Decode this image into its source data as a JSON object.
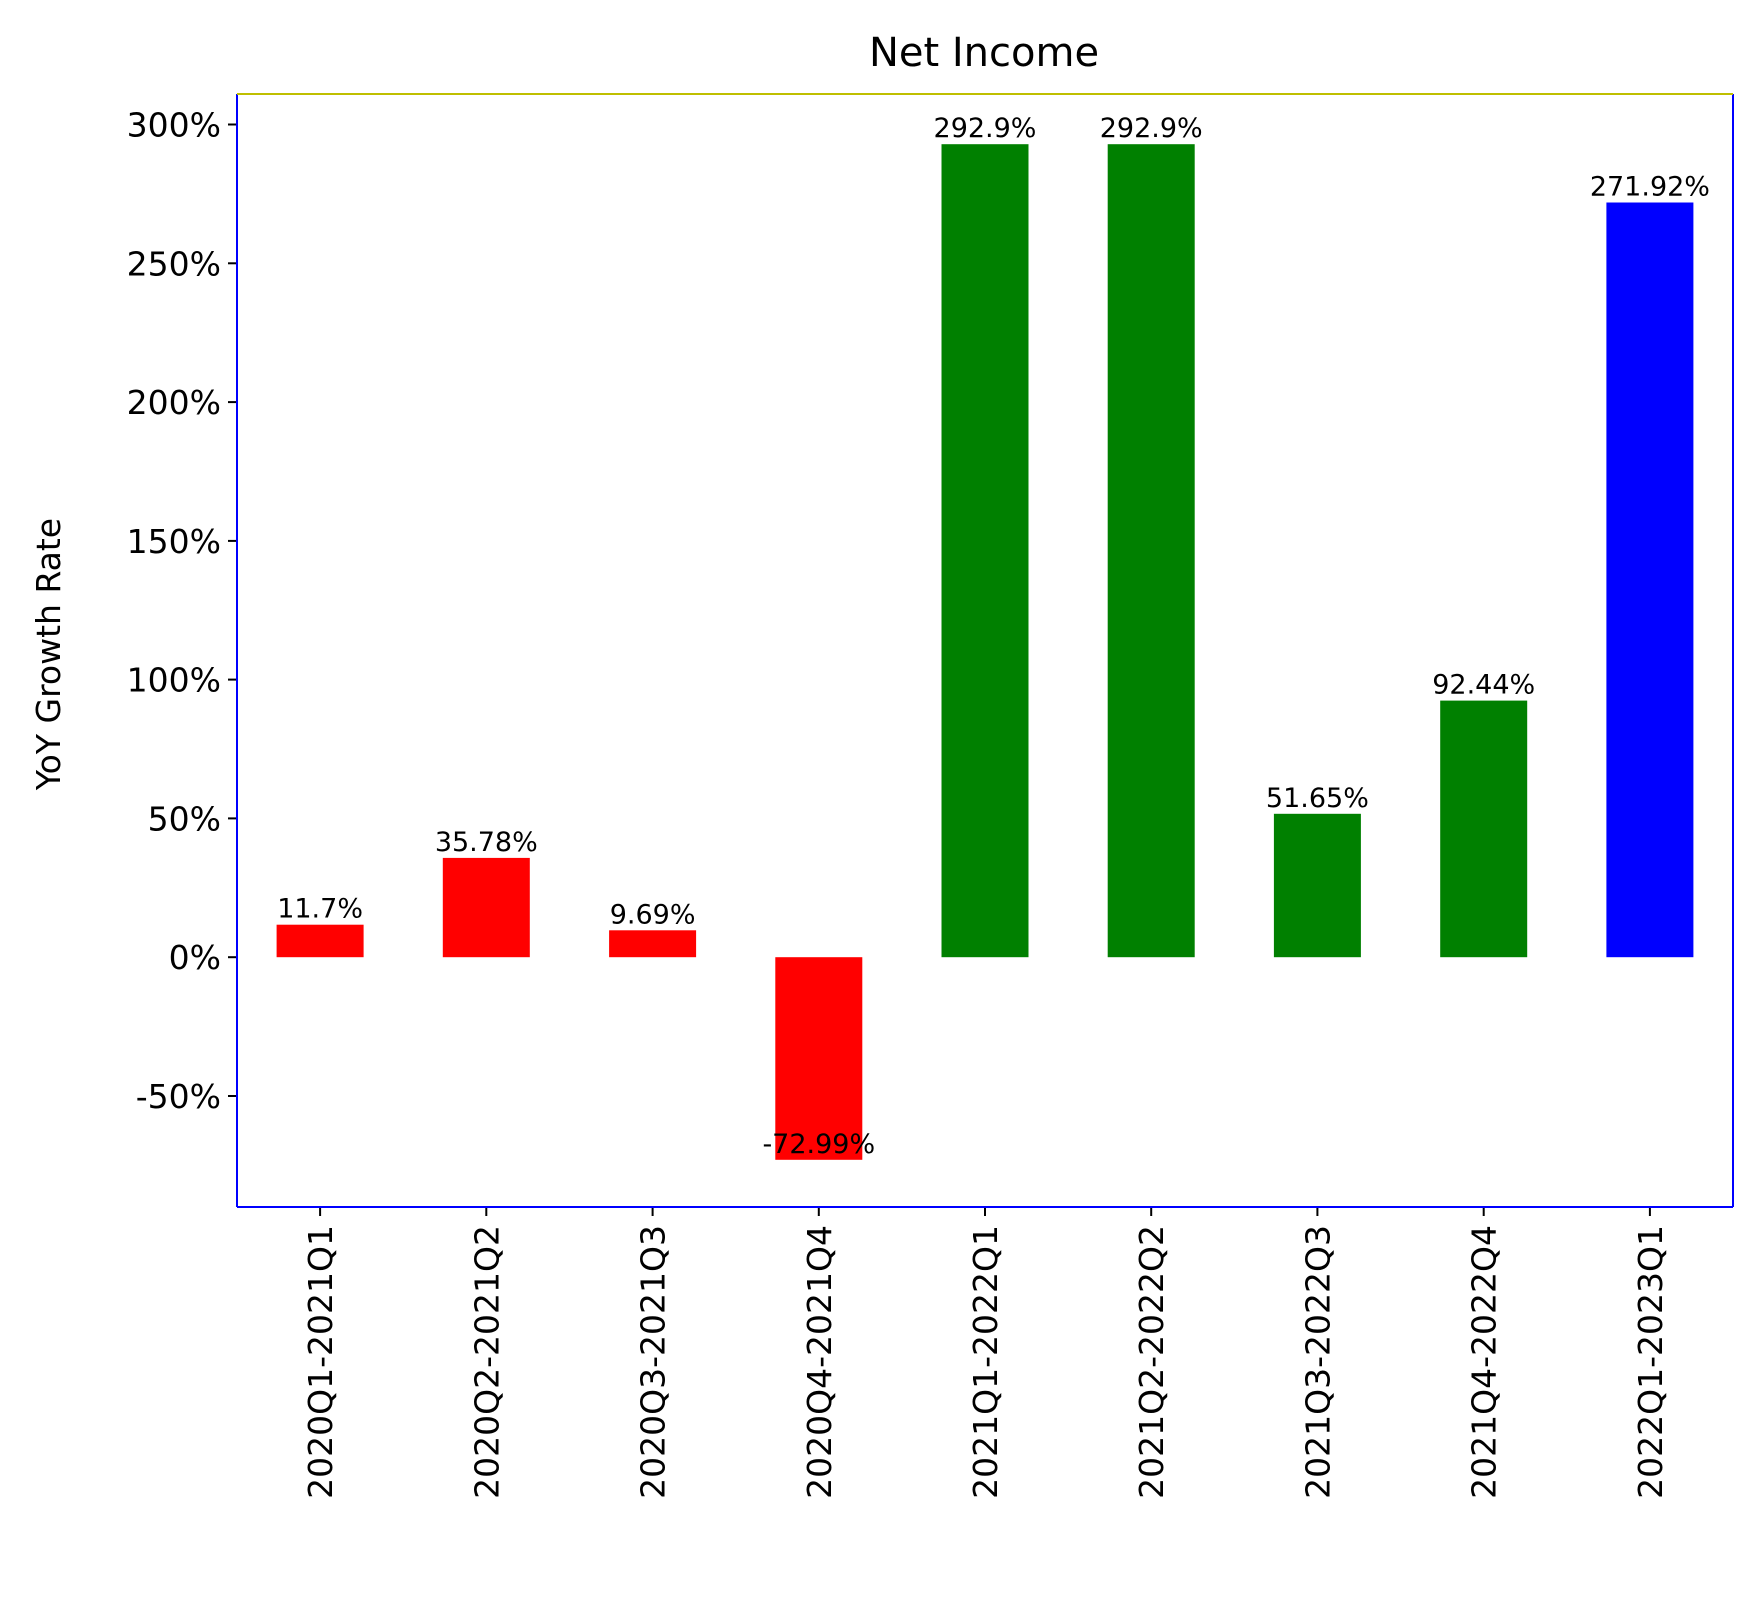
{
  "chart_data": {
    "type": "bar",
    "title": "Net Income",
    "xlabel": "",
    "ylabel": "YoY Growth Rate",
    "categories": [
      "2020Q1-2021Q1",
      "2020Q2-2021Q2",
      "2020Q3-2021Q3",
      "2020Q4-2021Q4",
      "2021Q1-2022Q1",
      "2021Q2-2022Q2",
      "2021Q3-2022Q3",
      "2021Q4-2022Q4",
      "2022Q1-2023Q1"
    ],
    "values": [
      11.7,
      35.78,
      9.69,
      -72.99,
      292.9,
      292.9,
      51.65,
      92.44,
      271.92
    ],
    "data_labels": [
      "11.7%",
      "35.78%",
      "9.69%",
      "-72.99%",
      "292.9%",
      "292.9%",
      "51.65%",
      "92.44%",
      "271.92%"
    ],
    "bar_colors": [
      "#ff0000",
      "#ff0000",
      "#ff0000",
      "#ff0000",
      "#008000",
      "#008000",
      "#008000",
      "#008000",
      "#0000ff"
    ],
    "ylim": [
      -90,
      311
    ],
    "yticks": [
      -50,
      0,
      50,
      100,
      150,
      200,
      250,
      300
    ],
    "ytick_labels": [
      "-50%",
      "0%",
      "50%",
      "100%",
      "150%",
      "200%",
      "250%",
      "300%"
    ],
    "grid": false,
    "legend": "none",
    "spine_colors": {
      "left": "#0000ff",
      "right": "#0000ff",
      "bottom": "#0000ff",
      "top": "#bfbf00"
    }
  }
}
